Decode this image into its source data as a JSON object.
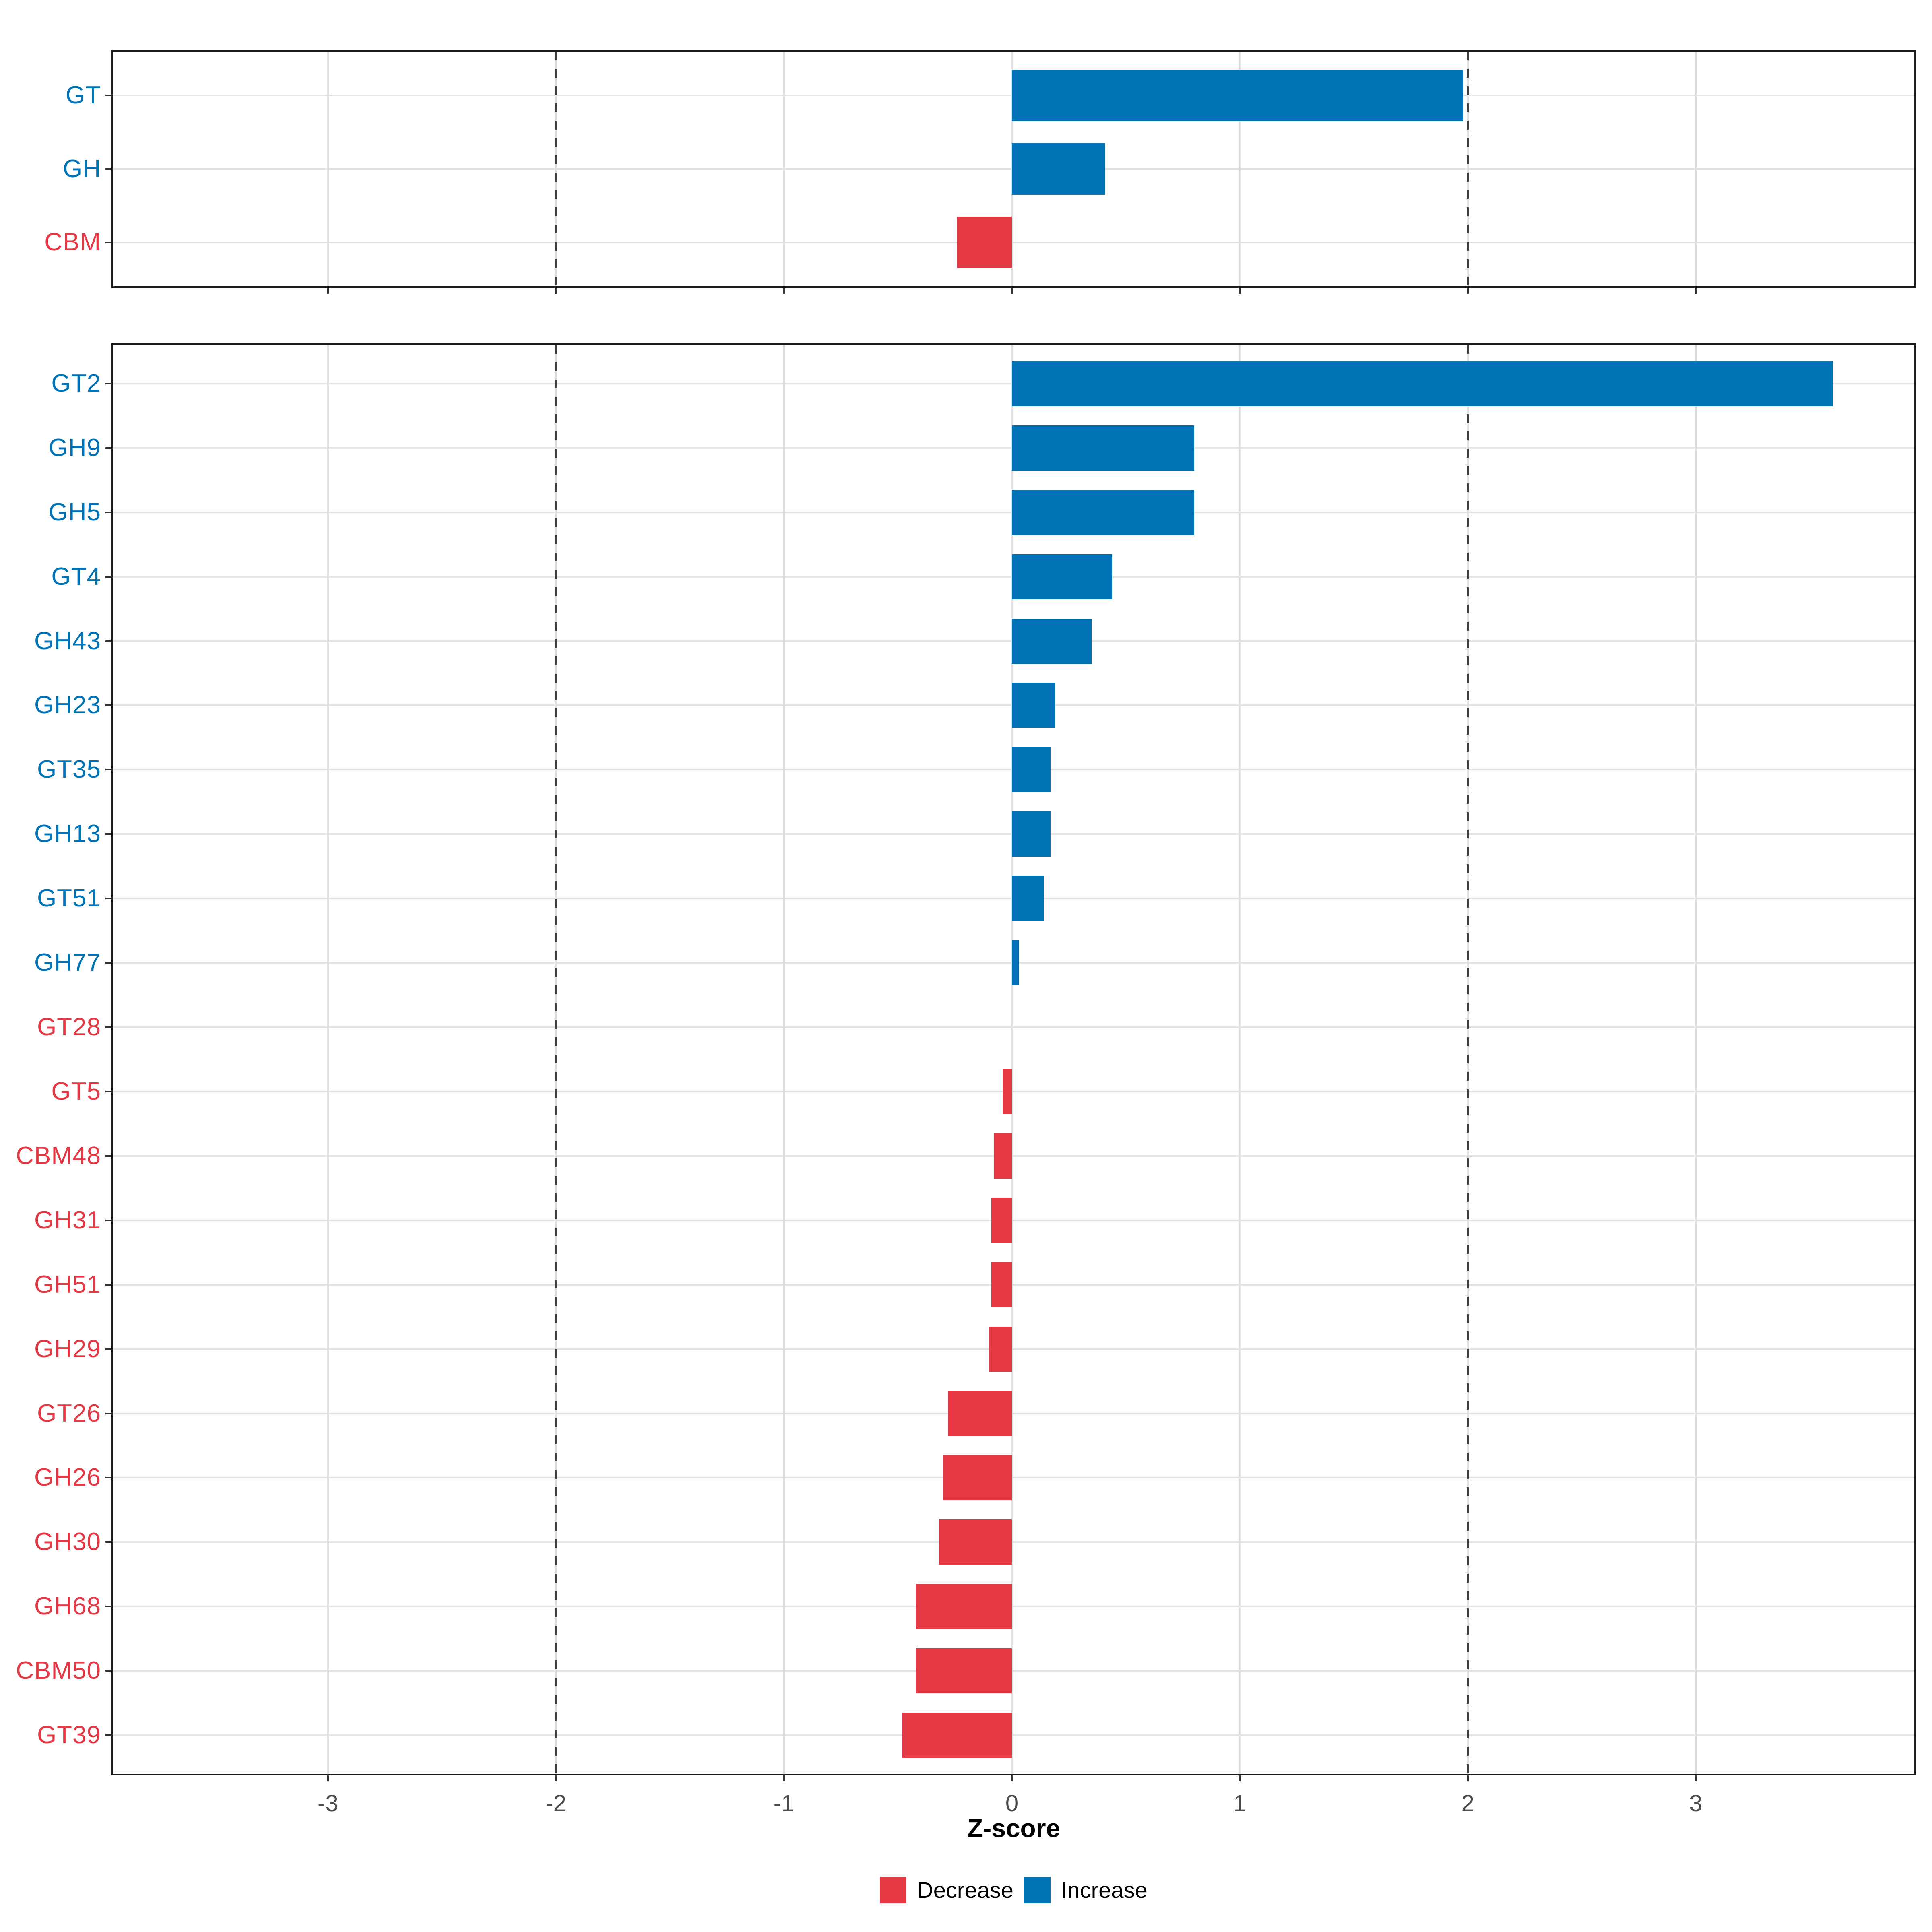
{
  "chart_data": {
    "type": "bar",
    "orientation": "horizontal",
    "title": "",
    "xlabel": "Z-score",
    "x_tick_labels": [
      "-3",
      "-2",
      "-1",
      "0",
      "1",
      "2",
      "3"
    ],
    "x_tick_values": [
      -3,
      -2,
      -1,
      0,
      1,
      2,
      3
    ],
    "xlim": [
      -3.95,
      3.97
    ],
    "grid": "major-only",
    "dashed_reference_lines_at": [
      -2,
      2
    ],
    "legend_position": "bottom",
    "colors": {
      "decrease": "#e43845",
      "increase": "#0073b6"
    },
    "legend": [
      {
        "label": "Decrease",
        "key": "decrease"
      },
      {
        "label": "Increase",
        "key": "increase"
      }
    ],
    "panels": [
      {
        "name": "cazyme-classes",
        "categories": [
          "GT",
          "GH",
          "CBM"
        ],
        "values": [
          1.98,
          0.41,
          -0.24
        ],
        "directions": [
          "increase",
          "increase",
          "decrease"
        ]
      },
      {
        "name": "cazyme-families",
        "categories": [
          "GT2",
          "GH9",
          "GH5",
          "GT4",
          "GH43",
          "GH23",
          "GT35",
          "GH13",
          "GT51",
          "GH77",
          "GT28",
          "GT5",
          "CBM48",
          "GH31",
          "GH51",
          "GH29",
          "GT26",
          "GH26",
          "GH30",
          "GH68",
          "CBM50",
          "GT39"
        ],
        "values": [
          3.6,
          0.8,
          0.8,
          0.44,
          0.35,
          0.19,
          0.17,
          0.17,
          0.14,
          0.03,
          0.0,
          -0.04,
          -0.08,
          -0.09,
          -0.09,
          -0.1,
          -0.28,
          -0.3,
          -0.32,
          -0.42,
          -0.42,
          -0.48
        ],
        "directions": [
          "increase",
          "increase",
          "increase",
          "increase",
          "increase",
          "increase",
          "increase",
          "increase",
          "increase",
          "increase",
          "decrease",
          "decrease",
          "decrease",
          "decrease",
          "decrease",
          "decrease",
          "decrease",
          "decrease",
          "decrease",
          "decrease",
          "decrease",
          "decrease"
        ]
      }
    ]
  }
}
